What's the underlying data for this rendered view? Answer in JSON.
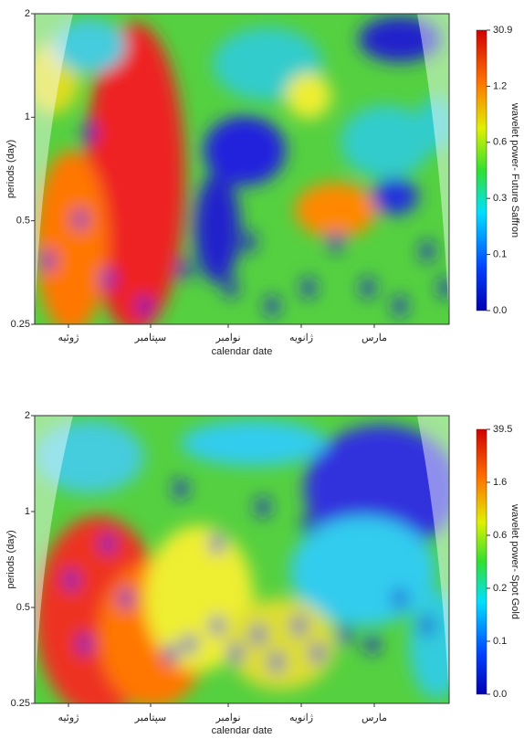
{
  "chart_data": [
    {
      "type": "heatmap",
      "x_label": "calendar date",
      "y_label": "periods (day)",
      "categories": [
        "ژوئیه",
        "سپتامبر",
        "نوامبر",
        "ژانویه",
        "مارس"
      ],
      "log_y": true,
      "ylim": [
        0.25,
        2
      ],
      "yticks": [
        0.25,
        0.5,
        1,
        2
      ],
      "colorbar_title": "wavelet power- Future Saffron",
      "colorbar_ticks": [
        {
          "value": 0,
          "label": "0.0"
        },
        0.1,
        0.3,
        0.6,
        1.2,
        30.9
      ]
    },
    {
      "type": "heatmap",
      "x_label": "calendar date",
      "y_label": "periods (day)",
      "categories": [
        "ژوئیه",
        "سپتامبر",
        "نوامبر",
        "ژانویه",
        "مارس"
      ],
      "log_y": true,
      "ylim": [
        0.25,
        2
      ],
      "yticks": [
        0.25,
        0.5,
        1,
        2
      ],
      "colorbar_title": "wavelet power- Spot Gold",
      "colorbar_ticks": [
        {
          "value": 0,
          "label": "0.0"
        },
        0.1,
        0.2,
        0.6,
        1.6,
        39.5
      ]
    }
  ]
}
